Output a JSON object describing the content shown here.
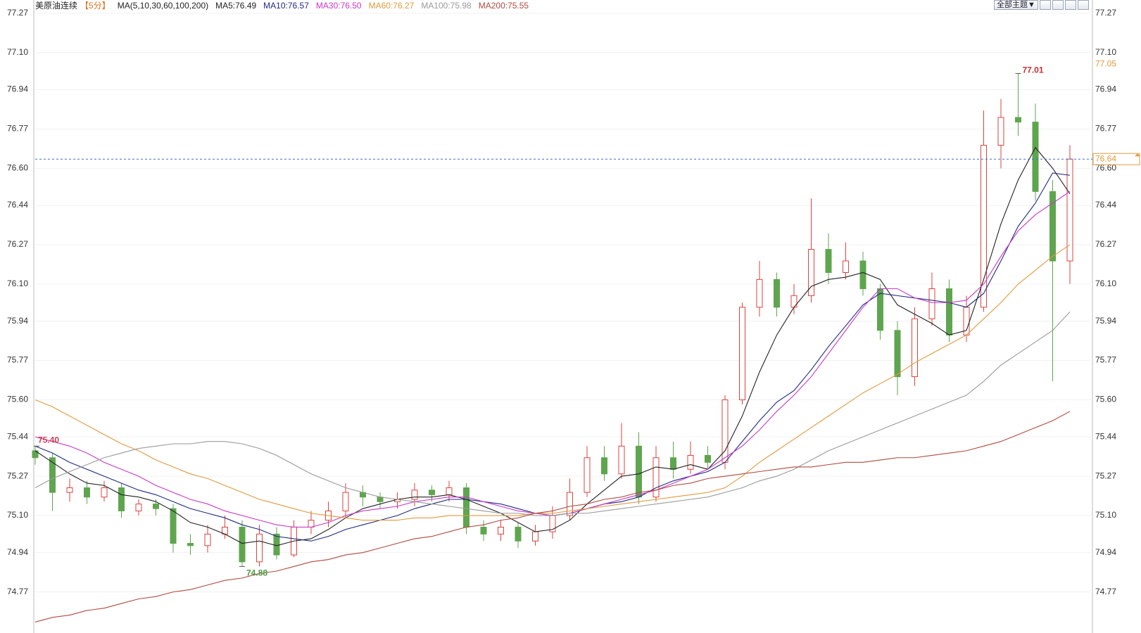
{
  "chart_data": {
    "type": "candlestick",
    "title": "美原油连续",
    "period": "【5分】",
    "ma_spec": "MA(5,10,30,60,100,200)",
    "toolbar_button": "全部主题▼",
    "up_color": "#d9443c",
    "down_color": "#5fa54f",
    "ylim": [
      74.62,
      77.3
    ],
    "yticks": [
      74.77,
      74.94,
      {
        "value": 75.1,
        "label": "75.10"
      },
      75.27,
      75.44,
      {
        "value": 75.6,
        "label": "75.60"
      },
      75.77,
      75.94,
      {
        "value": 76.1,
        "label": "76.10"
      },
      76.27,
      76.44,
      {
        "value": 76.6,
        "label": "76.60"
      },
      76.77,
      76.94,
      {
        "value": 77.1,
        "label": "77.10"
      },
      77.27
    ],
    "grid": true,
    "open": [
      75.38,
      75.35,
      75.2,
      75.22,
      75.18,
      75.22,
      75.12,
      75.15,
      75.13,
      74.98,
      74.97,
      75.02,
      75.05,
      74.9,
      75.02,
      74.93,
      75.05,
      75.08,
      75.12,
      75.2,
      75.18,
      75.16,
      75.17,
      75.21,
      75.19,
      75.22,
      75.05,
      75.02,
      75.05,
      74.99,
      75.03,
      75.1,
      75.2,
      75.35,
      75.28,
      75.4,
      75.18,
      75.35,
      75.3,
      75.36,
      75.33,
      75.6,
      76.0,
      76.12,
      76.0,
      76.05,
      76.25,
      76.15,
      76.2,
      76.08,
      75.9,
      75.7,
      75.95,
      76.08,
      75.88,
      76.0,
      76.7,
      76.82,
      76.8,
      76.5,
      76.2
    ],
    "high": [
      75.4,
      75.37,
      75.26,
      75.25,
      75.25,
      75.24,
      75.17,
      75.17,
      75.15,
      75.02,
      75.06,
      75.1,
      75.08,
      75.06,
      75.05,
      75.08,
      75.12,
      75.16,
      75.24,
      75.23,
      75.2,
      75.2,
      75.24,
      75.23,
      75.25,
      75.24,
      75.08,
      75.08,
      75.07,
      75.06,
      75.14,
      75.26,
      75.4,
      75.4,
      75.5,
      75.46,
      75.4,
      75.42,
      75.42,
      75.4,
      75.62,
      76.02,
      76.2,
      76.15,
      76.1,
      76.47,
      76.32,
      76.28,
      76.24,
      76.1,
      75.94,
      76.0,
      76.15,
      76.12,
      76.05,
      76.85,
      76.9,
      77.01,
      76.88,
      76.55,
      76.7
    ],
    "low": [
      75.32,
      75.12,
      75.16,
      75.15,
      75.16,
      75.09,
      75.1,
      75.1,
      74.94,
      74.93,
      74.94,
      75.0,
      74.88,
      74.88,
      74.91,
      74.92,
      75.02,
      75.05,
      75.09,
      75.14,
      75.13,
      75.13,
      75.14,
      75.16,
      75.16,
      75.02,
      74.99,
      74.99,
      74.96,
      74.97,
      75.0,
      75.08,
      75.18,
      75.25,
      75.26,
      75.15,
      75.16,
      75.26,
      75.28,
      75.3,
      75.3,
      75.58,
      75.96,
      75.96,
      75.97,
      76.02,
      76.1,
      76.12,
      76.05,
      75.86,
      75.62,
      75.66,
      75.92,
      75.85,
      75.85,
      75.98,
      76.6,
      76.74,
      76.46,
      75.68,
      76.1
    ],
    "close": [
      75.35,
      75.2,
      75.22,
      75.18,
      75.22,
      75.12,
      75.15,
      75.13,
      74.98,
      74.97,
      75.02,
      75.05,
      74.9,
      75.02,
      74.93,
      75.05,
      75.08,
      75.12,
      75.2,
      75.18,
      75.16,
      75.17,
      75.21,
      75.19,
      75.22,
      75.05,
      75.02,
      75.05,
      74.99,
      75.03,
      75.1,
      75.2,
      75.35,
      75.28,
      75.4,
      75.18,
      75.35,
      75.3,
      75.36,
      75.33,
      75.6,
      76.0,
      76.12,
      76.0,
      76.05,
      76.25,
      76.15,
      76.2,
      76.08,
      75.9,
      75.7,
      75.95,
      76.08,
      75.88,
      76.0,
      76.7,
      76.82,
      76.8,
      76.5,
      76.2,
      76.64
    ],
    "series": [
      {
        "name": "MA5:76.49",
        "color": "#222222",
        "values": [
          75.38,
          75.33,
          75.28,
          75.24,
          75.23,
          75.19,
          75.18,
          75.16,
          75.12,
          75.07,
          75.05,
          75.02,
          74.98,
          74.99,
          74.97,
          74.99,
          75.0,
          75.04,
          75.09,
          75.13,
          75.15,
          75.17,
          75.18,
          75.18,
          75.19,
          75.17,
          75.14,
          75.11,
          75.07,
          75.03,
          75.04,
          75.08,
          75.15,
          75.21,
          75.27,
          75.28,
          75.31,
          75.3,
          75.32,
          75.3,
          75.38,
          75.53,
          75.72,
          75.88,
          76.0,
          76.09,
          76.12,
          76.13,
          76.15,
          76.12,
          76.01,
          75.97,
          75.93,
          75.88,
          75.9,
          76.12,
          76.36,
          76.55,
          76.69,
          76.6,
          76.49
        ]
      },
      {
        "name": "MA10:76.57",
        "color": "#1e2a80",
        "values": [
          75.4,
          75.37,
          75.33,
          75.3,
          75.27,
          75.24,
          75.21,
          75.19,
          75.16,
          75.13,
          75.11,
          75.09,
          75.06,
          75.04,
          75.01,
          75.0,
          74.99,
          75.01,
          75.04,
          75.06,
          75.08,
          75.1,
          75.13,
          75.15,
          75.17,
          75.17,
          75.16,
          75.15,
          75.13,
          75.11,
          75.1,
          75.11,
          75.13,
          75.15,
          75.16,
          75.18,
          75.22,
          75.25,
          75.27,
          75.29,
          75.33,
          75.42,
          75.51,
          75.59,
          75.64,
          75.73,
          75.83,
          75.92,
          76.01,
          76.06,
          76.05,
          76.04,
          76.03,
          76.02,
          76.0,
          76.06,
          76.2,
          76.35,
          76.45,
          76.58,
          76.57
        ]
      },
      {
        "name": "MA30:76.50",
        "color": "#c838c8",
        "values": [
          75.44,
          75.42,
          75.4,
          75.37,
          75.33,
          75.3,
          75.27,
          75.23,
          75.2,
          75.17,
          75.15,
          75.12,
          75.1,
          75.08,
          75.06,
          75.05,
          75.05,
          75.07,
          75.1,
          75.12,
          75.13,
          75.14,
          75.16,
          75.17,
          75.18,
          75.18,
          75.16,
          75.14,
          75.12,
          75.11,
          75.1,
          75.11,
          75.13,
          75.15,
          75.17,
          75.19,
          75.21,
          75.24,
          75.27,
          75.3,
          75.35,
          75.4,
          75.47,
          75.55,
          75.62,
          75.7,
          75.8,
          75.9,
          76.0,
          76.08,
          76.08,
          76.04,
          76.02,
          76.02,
          76.03,
          76.1,
          76.22,
          76.33,
          76.4,
          76.45,
          76.5
        ]
      },
      {
        "name": "MA60:76.27",
        "color": "#e09a3c",
        "values": [
          75.6,
          75.57,
          75.53,
          75.49,
          75.45,
          75.41,
          75.38,
          75.34,
          75.31,
          75.28,
          75.26,
          75.23,
          75.2,
          75.17,
          75.15,
          75.13,
          75.11,
          75.1,
          75.09,
          75.08,
          75.08,
          75.08,
          75.09,
          75.09,
          75.1,
          75.1,
          75.1,
          75.1,
          75.1,
          75.11,
          75.11,
          75.12,
          75.13,
          75.14,
          75.15,
          75.16,
          75.17,
          75.18,
          75.19,
          75.2,
          75.22,
          75.27,
          75.33,
          75.38,
          75.43,
          75.48,
          75.53,
          75.58,
          75.63,
          75.67,
          75.71,
          75.76,
          75.8,
          75.84,
          75.88,
          75.95,
          76.02,
          76.1,
          76.16,
          76.22,
          76.27
        ]
      },
      {
        "name": "MA100:75.98",
        "color": "#9a9a9a",
        "values": [
          75.22,
          75.26,
          75.29,
          75.32,
          75.35,
          75.37,
          75.39,
          75.4,
          75.41,
          75.41,
          75.42,
          75.42,
          75.41,
          75.39,
          75.36,
          75.32,
          75.28,
          75.25,
          75.22,
          75.2,
          75.18,
          75.17,
          75.16,
          75.15,
          75.14,
          75.13,
          75.12,
          75.11,
          75.11,
          75.1,
          75.1,
          75.11,
          75.11,
          75.12,
          75.13,
          75.14,
          75.15,
          75.16,
          75.17,
          75.18,
          75.2,
          75.22,
          75.25,
          75.27,
          75.3,
          75.34,
          75.38,
          75.41,
          75.44,
          75.47,
          75.5,
          75.53,
          75.56,
          75.59,
          75.62,
          75.68,
          75.75,
          75.8,
          75.85,
          75.9,
          75.98
        ]
      },
      {
        "name": "MA200:75.55",
        "color": "#b04a40",
        "values": [
          74.64,
          74.66,
          74.67,
          74.69,
          74.7,
          74.72,
          74.74,
          74.75,
          74.77,
          74.78,
          74.8,
          74.82,
          74.83,
          74.85,
          74.86,
          74.88,
          74.9,
          74.91,
          74.93,
          74.94,
          74.96,
          74.98,
          75.0,
          75.01,
          75.03,
          75.05,
          75.06,
          75.08,
          75.09,
          75.11,
          75.12,
          75.14,
          75.15,
          75.17,
          75.18,
          75.2,
          75.21,
          75.23,
          75.24,
          75.26,
          75.27,
          75.28,
          75.29,
          75.3,
          75.31,
          75.31,
          75.32,
          75.33,
          75.33,
          75.34,
          75.35,
          75.35,
          75.36,
          75.37,
          75.38,
          75.4,
          75.42,
          75.45,
          75.48,
          75.51,
          75.55
        ]
      }
    ],
    "high_label": 77.01,
    "low_label": 74.88,
    "start_label": {
      "value": 75.4,
      "label": "75.40"
    },
    "last_price": 76.64,
    "right_marker": 77.05
  }
}
